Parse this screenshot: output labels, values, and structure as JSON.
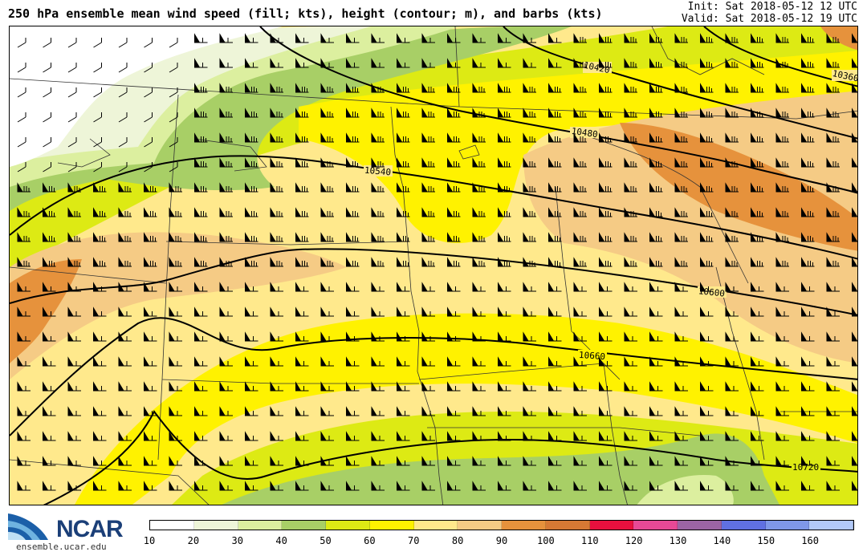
{
  "header": {
    "title": "250 hPa ensemble mean wind speed (fill; kts), height (contour; m), and barbs (kts)",
    "init": "Init: Sat 2018-05-12 12 UTC",
    "valid": "Valid: Sat 2018-05-12 19 UTC"
  },
  "contours": [
    {
      "label": "10360"
    },
    {
      "label": "10420"
    },
    {
      "label": "10480"
    },
    {
      "label": "10540"
    },
    {
      "label": "10600"
    },
    {
      "label": "10660"
    },
    {
      "label": "10720"
    }
  ],
  "colorbar": {
    "units": "kts",
    "ticks": [
      "10",
      "20",
      "30",
      "40",
      "50",
      "60",
      "70",
      "80",
      "90",
      "100",
      "110",
      "120",
      "130",
      "140",
      "150",
      "160"
    ],
    "colors": [
      "#ffffff",
      "#eef5d8",
      "#dcef9f",
      "#a8cf66",
      "#ddea14",
      "#fff200",
      "#ffe98c",
      "#f5cb85",
      "#e6923c",
      "#d67934",
      "#e8103e",
      "#e74996",
      "#9b64a5",
      "#6070e2",
      "#7f97e8",
      "#b2c9f8"
    ]
  },
  "logo": {
    "name": "NCAR",
    "url": "ensemble.ucar.edu"
  }
}
